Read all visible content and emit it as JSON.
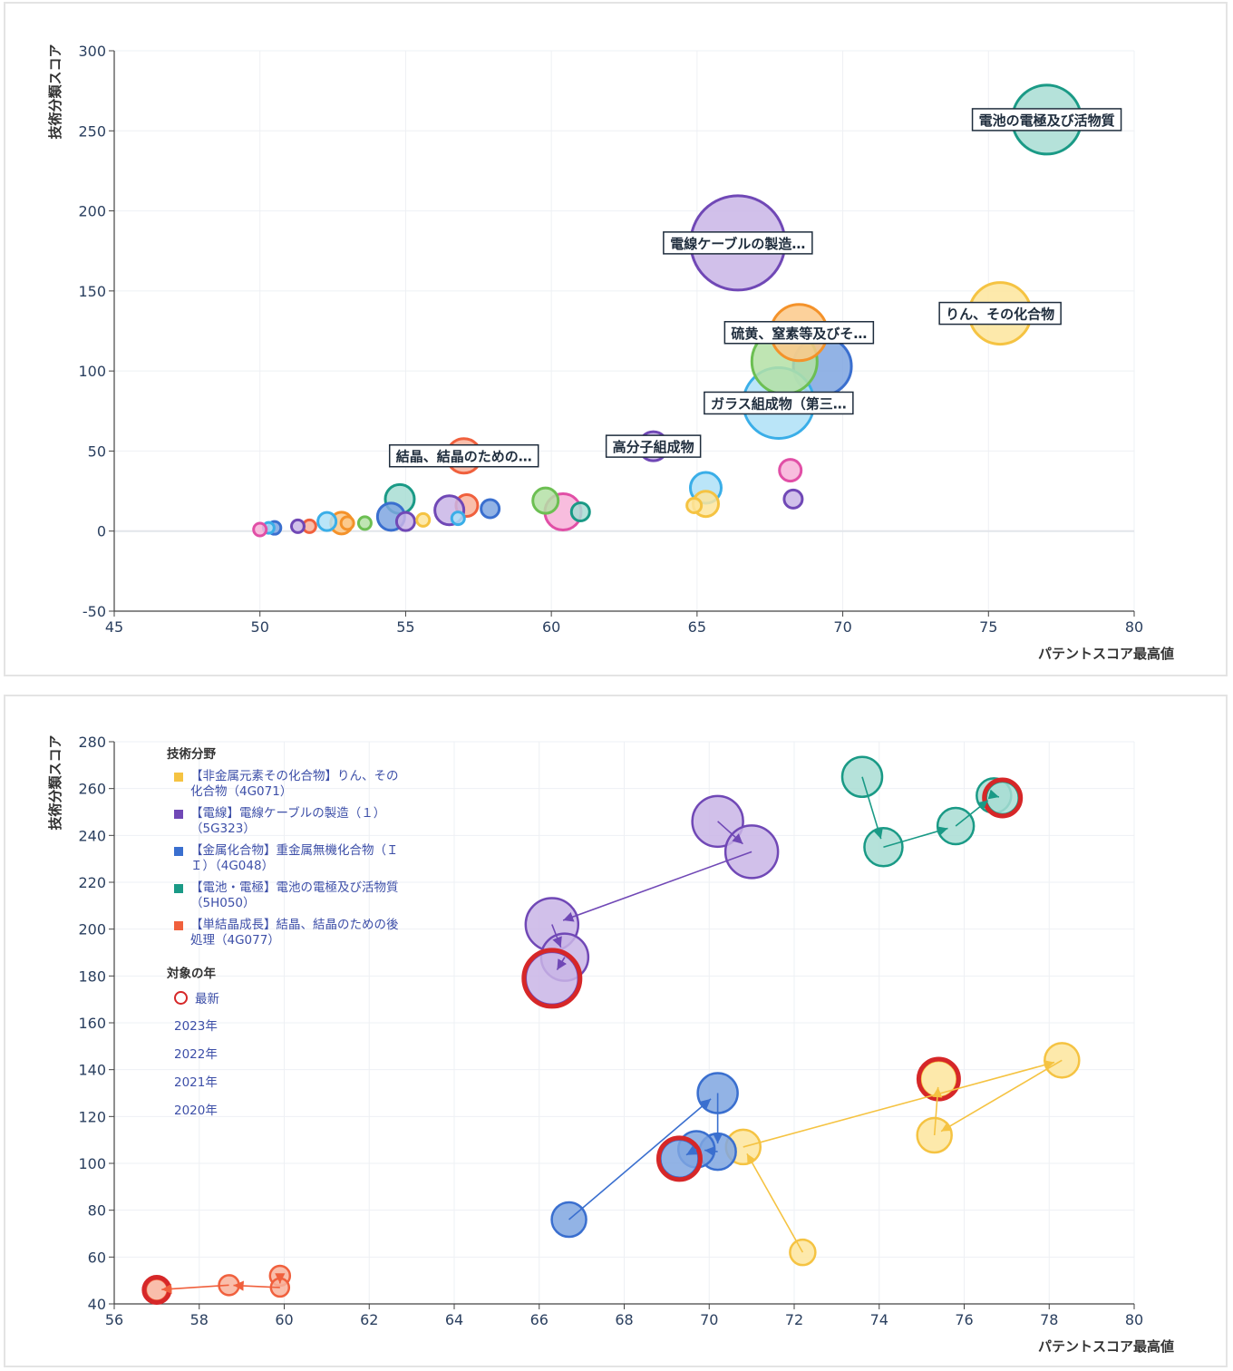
{
  "chart_data": [
    {
      "type": "scatter",
      "subtype": "bubble",
      "xlabel": "パテントスコア最高値",
      "ylabel": "技術分類スコア",
      "xlim": [
        45,
        80
      ],
      "ylim": [
        -50,
        300
      ],
      "x_ticks": [
        "45",
        "50",
        "55",
        "60",
        "65",
        "70",
        "75",
        "80"
      ],
      "y_ticks": [
        "300",
        "250",
        "200",
        "150",
        "100",
        "50",
        "0",
        "-50"
      ],
      "grid": true,
      "points": [
        {
          "x": 77.0,
          "y": 257,
          "s": 38,
          "fill": "#a8ddd3",
          "stroke": "#1a9a86",
          "label": "電池の電極及び活物質"
        },
        {
          "x": 66.4,
          "y": 180,
          "s": 52,
          "fill": "#c9b5e6",
          "stroke": "#7048b6",
          "label": "電線ケーブルの製造…"
        },
        {
          "x": 75.4,
          "y": 136,
          "s": 34,
          "fill": "#fde59c",
          "stroke": "#f5c342",
          "label": "りん、その化合物"
        },
        {
          "x": 69.3,
          "y": 103,
          "s": 32,
          "fill": "#7fa6e0",
          "stroke": "#3a6fcf",
          "label": ""
        },
        {
          "x": 67.8,
          "y": 80,
          "s": 39,
          "fill": "#aee0f7",
          "stroke": "#3aaee8",
          "label": "ガラス組成物（第三…"
        },
        {
          "x": 68.0,
          "y": 106,
          "s": 36,
          "fill": "#b4e1a6",
          "stroke": "#6cbf52",
          "label": ""
        },
        {
          "x": 68.5,
          "y": 124,
          "s": 31,
          "fill": "#fcc98a",
          "stroke": "#f4922a",
          "label": "硫黄、窒素等及びそ…"
        },
        {
          "x": 63.5,
          "y": 53,
          "s": 16,
          "fill": "#c9b5e6",
          "stroke": "#7048b6",
          "label": "高分子組成物"
        },
        {
          "x": 57.0,
          "y": 47,
          "s": 19,
          "fill": "#f8b39c",
          "stroke": "#f0603d",
          "label": "結晶、結晶のための…"
        },
        {
          "x": 68.2,
          "y": 38,
          "s": 12,
          "fill": "#f7b2d8",
          "stroke": "#e14fa6",
          "label": ""
        },
        {
          "x": 68.3,
          "y": 20,
          "s": 10,
          "fill": "#c9b5e6",
          "stroke": "#7048b6",
          "label": ""
        },
        {
          "x": 65.3,
          "y": 27,
          "s": 17,
          "fill": "#aee0f7",
          "stroke": "#3aaee8",
          "label": ""
        },
        {
          "x": 65.3,
          "y": 17,
          "s": 14,
          "fill": "#fde59c",
          "stroke": "#f5c342",
          "label": ""
        },
        {
          "x": 64.9,
          "y": 16,
          "s": 8,
          "fill": "#fde59c",
          "stroke": "#f5c342",
          "label": ""
        },
        {
          "x": 60.4,
          "y": 12,
          "s": 20,
          "fill": "#f7b2d8",
          "stroke": "#e14fa6",
          "label": ""
        },
        {
          "x": 59.8,
          "y": 19,
          "s": 14,
          "fill": "#b4e1a6",
          "stroke": "#6cbf52",
          "label": ""
        },
        {
          "x": 61.0,
          "y": 12,
          "s": 10,
          "fill": "#a8ddd3",
          "stroke": "#1a9a86",
          "label": ""
        },
        {
          "x": 57.9,
          "y": 14,
          "s": 10,
          "fill": "#7fa6e0",
          "stroke": "#3a6fcf",
          "label": ""
        },
        {
          "x": 57.1,
          "y": 16,
          "s": 12,
          "fill": "#f8b39c",
          "stroke": "#f0603d",
          "label": ""
        },
        {
          "x": 56.5,
          "y": 13,
          "s": 16,
          "fill": "#c9b5e6",
          "stroke": "#7048b6",
          "label": ""
        },
        {
          "x": 56.8,
          "y": 8,
          "s": 7,
          "fill": "#aee0f7",
          "stroke": "#3aaee8",
          "label": ""
        },
        {
          "x": 54.8,
          "y": 20,
          "s": 16,
          "fill": "#a8ddd3",
          "stroke": "#1a9a86",
          "label": ""
        },
        {
          "x": 54.5,
          "y": 9,
          "s": 15,
          "fill": "#7fa6e0",
          "stroke": "#3a6fcf",
          "label": ""
        },
        {
          "x": 55.0,
          "y": 6,
          "s": 10,
          "fill": "#c9b5e6",
          "stroke": "#7048b6",
          "label": ""
        },
        {
          "x": 55.6,
          "y": 7,
          "s": 7,
          "fill": "#fde59c",
          "stroke": "#f5c342",
          "label": ""
        },
        {
          "x": 52.8,
          "y": 5,
          "s": 12,
          "fill": "#fcc98a",
          "stroke": "#f4922a",
          "label": ""
        },
        {
          "x": 52.3,
          "y": 6,
          "s": 10,
          "fill": "#aee0f7",
          "stroke": "#3aaee8",
          "label": ""
        },
        {
          "x": 53.0,
          "y": 5,
          "s": 7,
          "fill": "#fcc98a",
          "stroke": "#f4922a",
          "label": ""
        },
        {
          "x": 53.6,
          "y": 5,
          "s": 7,
          "fill": "#b4e1a6",
          "stroke": "#6cbf52",
          "label": ""
        },
        {
          "x": 51.7,
          "y": 3,
          "s": 7,
          "fill": "#f8b39c",
          "stroke": "#f0603d",
          "label": ""
        },
        {
          "x": 51.3,
          "y": 3,
          "s": 7,
          "fill": "#c9b5e6",
          "stroke": "#7048b6",
          "label": ""
        },
        {
          "x": 50.5,
          "y": 2,
          "s": 7,
          "fill": "#7fa6e0",
          "stroke": "#3a6fcf",
          "label": ""
        },
        {
          "x": 50.3,
          "y": 2,
          "s": 6,
          "fill": "#aee0f7",
          "stroke": "#3aaee8",
          "label": ""
        },
        {
          "x": 50.0,
          "y": 1,
          "s": 7,
          "fill": "#f7b2d8",
          "stroke": "#e14fa6",
          "label": ""
        }
      ]
    },
    {
      "type": "scatter",
      "subtype": "bubble-trajectory",
      "xlabel": "パテントスコア最高値",
      "ylabel": "技術分類スコア",
      "xlim": [
        56,
        80
      ],
      "ylim": [
        40,
        280
      ],
      "x_ticks": [
        "56",
        "58",
        "60",
        "62",
        "64",
        "66",
        "68",
        "70",
        "72",
        "74",
        "76",
        "78",
        "80"
      ],
      "y_ticks": [
        "280",
        "260",
        "240",
        "220",
        "200",
        "180",
        "160",
        "140",
        "120",
        "100",
        "80",
        "60",
        "40"
      ],
      "grid": true,
      "series": [
        {
          "name": "【非金属元素その化合物】りん、その化合物（4G071）",
          "color": "#f5c342",
          "fill": "#fde59c",
          "points": [
            {
              "x": 72.2,
              "y": 62,
              "s": 14
            },
            {
              "x": 70.8,
              "y": 107,
              "s": 19
            },
            {
              "x": 78.3,
              "y": 144,
              "s": 19
            },
            {
              "x": 75.3,
              "y": 112,
              "s": 19
            },
            {
              "x": 75.4,
              "y": 136,
              "s": 20,
              "latest": true
            }
          ]
        },
        {
          "name": "【電線】電線ケーブルの製造（１）（5G323）",
          "color": "#7048b6",
          "fill": "#c9b5e6",
          "points": [
            {
              "x": 70.2,
              "y": 246,
              "s": 28
            },
            {
              "x": 71.0,
              "y": 233,
              "s": 29
            },
            {
              "x": 66.3,
              "y": 202,
              "s": 29
            },
            {
              "x": 66.6,
              "y": 188,
              "s": 26
            },
            {
              "x": 66.3,
              "y": 179,
              "s": 29,
              "latest": true
            }
          ]
        },
        {
          "name": "【金属化合物】重金属無機化合物（ＩＩ）（4G048）",
          "color": "#3a6fcf",
          "fill": "#7fa6e0",
          "points": [
            {
              "x": 66.7,
              "y": 76,
              "s": 19
            },
            {
              "x": 70.2,
              "y": 130,
              "s": 22
            },
            {
              "x": 70.2,
              "y": 105,
              "s": 20
            },
            {
              "x": 69.7,
              "y": 106,
              "s": 20
            },
            {
              "x": 69.3,
              "y": 102,
              "s": 21,
              "latest": true
            }
          ]
        },
        {
          "name": "【電池・電極】電池の電極及び活物質（5H050）",
          "color": "#1a9a86",
          "fill": "#a8ddd3",
          "points": [
            {
              "x": 73.6,
              "y": 265,
              "s": 22
            },
            {
              "x": 74.1,
              "y": 235,
              "s": 21
            },
            {
              "x": 75.8,
              "y": 244,
              "s": 20
            },
            {
              "x": 76.7,
              "y": 257,
              "s": 19
            },
            {
              "x": 76.9,
              "y": 256,
              "s": 18,
              "latest": true
            }
          ]
        },
        {
          "name": "【単結晶成長】結晶、結晶のための後処理（4G077）",
          "color": "#f0603d",
          "fill": "#f8b39c",
          "points": [
            {
              "x": 59.9,
              "y": 52,
              "s": 11
            },
            {
              "x": 59.9,
              "y": 47,
              "s": 10
            },
            {
              "x": 58.7,
              "y": 48,
              "s": 11
            },
            {
              "x": 57.0,
              "y": 46,
              "s": 12,
              "latest": true
            }
          ]
        }
      ]
    }
  ],
  "legend": {
    "title": "技術分野",
    "items": [
      {
        "label": "【非金属元素その化合物】りん、その化合物（4G071）",
        "color": "#f5c342"
      },
      {
        "label": "【電線】電線ケーブルの製造（１）（5G323）",
        "color": "#7048b6"
      },
      {
        "label": "【金属化合物】重金属無機化合物（ＩＩ）（4G048）",
        "color": "#3a6fcf"
      },
      {
        "label": "【電池・電極】電池の電極及び活物質（5H050）",
        "color": "#1a9a86"
      },
      {
        "label": "【単結晶成長】結晶、結晶のための後処理（4G077）",
        "color": "#f0603d"
      }
    ],
    "year_title": "対象の年",
    "latest_label": "最新",
    "latest_color": "#d62728",
    "years": [
      "2023年",
      "2022年",
      "2021年",
      "2020年"
    ]
  }
}
